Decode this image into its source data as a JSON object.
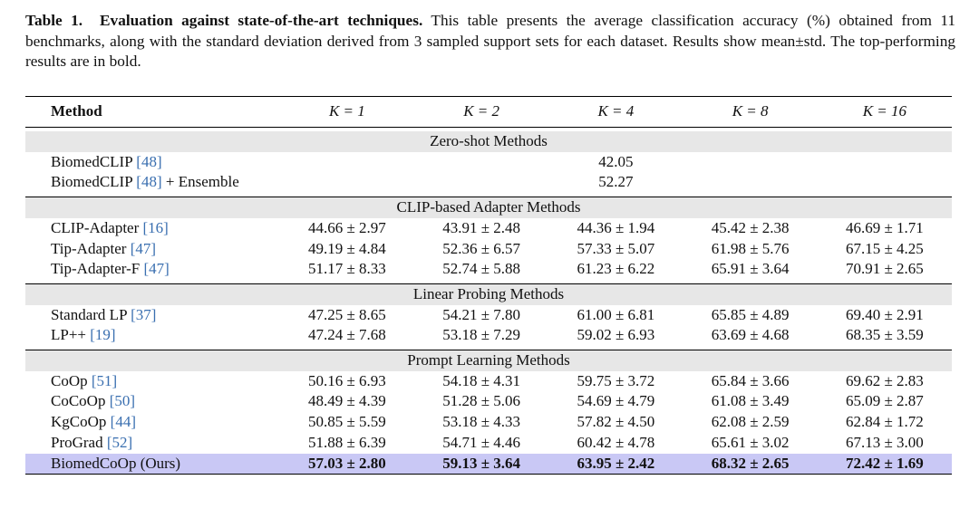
{
  "caption": {
    "label": "Table 1.",
    "title": "Evaluation against state-of-the-art techniques.",
    "body": "This table presents the average classification accuracy (%) obtained from 11 benchmarks, along with the standard deviation derived from 3 sampled support sets for each dataset. Results show mean±std. The top-performing results are in bold."
  },
  "header": {
    "method": "Method",
    "k1": "K = 1",
    "k2": "K = 2",
    "k4": "K = 4",
    "k8": "K = 8",
    "k16": "K = 16"
  },
  "sections": {
    "zero_shot": {
      "title": "Zero-shot Methods",
      "rows": [
        {
          "name": "BiomedCLIP ",
          "cite": "[48]",
          "suffix": "",
          "value": "42.05"
        },
        {
          "name": "BiomedCLIP ",
          "cite": "[48]",
          "suffix": " + Ensemble",
          "value": "52.27"
        }
      ]
    },
    "adapter": {
      "title": "CLIP-based Adapter Methods",
      "rows": [
        {
          "name": "CLIP-Adapter ",
          "cite": "[16]",
          "v": [
            "44.66 ± 2.97",
            "43.91 ± 2.48",
            "44.36 ± 1.94",
            "45.42 ± 2.38",
            "46.69 ± 1.71"
          ]
        },
        {
          "name": "Tip-Adapter ",
          "cite": "[47]",
          "v": [
            "49.19 ± 4.84",
            "52.36 ± 6.57",
            "57.33 ± 5.07",
            "61.98 ± 5.76",
            "67.15 ± 4.25"
          ]
        },
        {
          "name": "Tip-Adapter-F ",
          "cite": "[47]",
          "v": [
            "51.17 ± 8.33",
            "52.74 ± 5.88",
            "61.23 ± 6.22",
            "65.91 ± 3.64",
            "70.91 ± 2.65"
          ]
        }
      ]
    },
    "linear": {
      "title": "Linear Probing Methods",
      "rows": [
        {
          "name": "Standard LP ",
          "cite": "[37]",
          "v": [
            "47.25 ± 8.65",
            "54.21 ± 7.80",
            "61.00 ± 6.81",
            "65.85 ± 4.89",
            "69.40 ± 2.91"
          ]
        },
        {
          "name": "LP++ ",
          "cite": "[19]",
          "v": [
            "47.24 ± 7.68",
            "53.18 ± 7.29",
            "59.02 ± 6.93",
            "63.69 ± 4.68",
            "68.35 ± 3.59"
          ]
        }
      ]
    },
    "prompt": {
      "title": "Prompt Learning Methods",
      "rows": [
        {
          "name": "CoOp ",
          "cite": "[51]",
          "v": [
            "50.16 ± 6.93",
            "54.18 ± 4.31",
            "59.75 ± 3.72",
            "65.84 ± 3.66",
            "69.62 ± 2.83"
          ]
        },
        {
          "name": "CoCoOp ",
          "cite": "[50]",
          "v": [
            "48.49 ± 4.39",
            "51.28 ± 5.06",
            "54.69 ± 4.79",
            "61.08 ± 3.49",
            "65.09 ± 2.87"
          ]
        },
        {
          "name": "KgCoOp ",
          "cite": "[44]",
          "v": [
            "50.85 ± 5.59",
            "53.18 ± 4.33",
            "57.82 ± 4.50",
            "62.08 ± 2.59",
            "62.84 ± 1.72"
          ]
        },
        {
          "name": "ProGrad ",
          "cite": "[52]",
          "v": [
            "51.88 ± 6.39",
            "54.71 ± 4.46",
            "60.42 ± 4.78",
            "65.61 ± 3.02",
            "67.13 ± 3.00"
          ]
        },
        {
          "name": "BiomedCoOp (Ours)",
          "cite": "",
          "v": [
            "57.03 ± 2.80",
            "59.13 ± 3.64",
            "63.95 ± 2.42",
            "68.32 ± 2.65",
            "72.42 ± 1.69"
          ]
        }
      ]
    }
  },
  "colors": {
    "citation": "#3a6fb0",
    "section_band": "#e7e7e7",
    "ours_highlight": "#c9c8f5"
  }
}
